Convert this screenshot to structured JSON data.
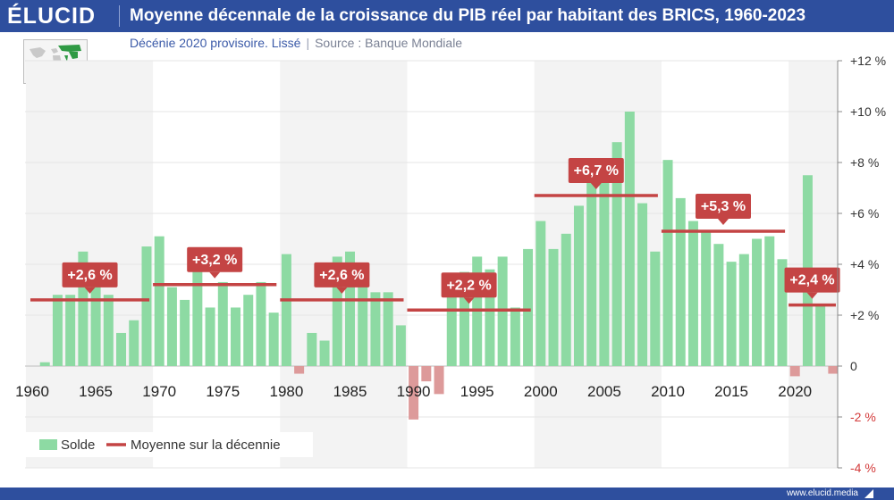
{
  "header": {
    "logo": "ÉLUCID",
    "title": "Moyenne décennale de la croissance du PIB réel par habitant des BRICS, 1960-2023"
  },
  "subtitle": {
    "note": "Décénie 2020 provisoire. Lissé",
    "separator": "|",
    "source": "Source : Banque Mondiale"
  },
  "map_icon": "world-map-brics-icon",
  "footer": {
    "site": "www.elucid.media"
  },
  "colors": {
    "header_bg": "#2e4f9e",
    "bar_positive": "#8ddaa3",
    "bar_negative": "#dd9a9a",
    "avg_line": "#c44444",
    "avg_label_bg": "#c44444",
    "neg_tick": "#d33a3a",
    "band": "#f3f3f3"
  },
  "chart_data": {
    "type": "bar",
    "title": "Moyenne décennale de la croissance du PIB réel par habitant des BRICS, 1960-2023",
    "x_range": [
      1960,
      2023
    ],
    "ylim": [
      -4,
      12
    ],
    "y_ticks": [
      12,
      10,
      8,
      6,
      4,
      2,
      0,
      -2,
      -4
    ],
    "y_tick_labels": [
      "+12 %",
      "+10 %",
      "+8 %",
      "+6 %",
      "+4 %",
      "+2 %",
      "0",
      "-2 %",
      "-4 %"
    ],
    "x_ticks": [
      1960,
      1965,
      1970,
      1975,
      1980,
      1985,
      1990,
      1995,
      2000,
      2005,
      2010,
      2015,
      2020
    ],
    "x_tick_labels": [
      "1960",
      "1965",
      "1970",
      "1975",
      "1980",
      "1985",
      "1990",
      "1995",
      "2000",
      "2005",
      "2010",
      "2015",
      "2020"
    ],
    "grid": true,
    "legend_position": "bottom-left",
    "series": [
      {
        "name": "Solde",
        "type": "bar",
        "years": [
          1960,
          1961,
          1962,
          1963,
          1964,
          1965,
          1966,
          1967,
          1968,
          1969,
          1970,
          1971,
          1972,
          1973,
          1974,
          1975,
          1976,
          1977,
          1978,
          1979,
          1980,
          1981,
          1982,
          1983,
          1984,
          1985,
          1986,
          1987,
          1988,
          1989,
          1990,
          1991,
          1992,
          1993,
          1994,
          1995,
          1996,
          1997,
          1998,
          1999,
          2000,
          2001,
          2002,
          2003,
          2004,
          2005,
          2006,
          2007,
          2008,
          2009,
          2010,
          2011,
          2012,
          2013,
          2014,
          2015,
          2016,
          2017,
          2018,
          2019,
          2020,
          2021,
          2022,
          2023
        ],
        "values": [
          0.0,
          0.15,
          2.8,
          2.8,
          4.5,
          3.4,
          2.8,
          1.3,
          1.8,
          4.7,
          5.1,
          3.1,
          2.6,
          4.5,
          2.3,
          3.3,
          2.3,
          2.8,
          3.3,
          2.1,
          4.4,
          -0.3,
          1.3,
          1.0,
          4.3,
          4.5,
          3.4,
          2.9,
          2.9,
          1.6,
          -2.1,
          -0.6,
          -1.1,
          2.9,
          3.7,
          4.3,
          3.8,
          4.3,
          2.3,
          4.6,
          5.7,
          4.6,
          5.2,
          6.3,
          7.4,
          7.7,
          8.8,
          10.0,
          6.4,
          4.5,
          8.1,
          6.6,
          5.7,
          5.3,
          4.8,
          4.1,
          4.4,
          5.0,
          5.1,
          4.2,
          -0.4,
          7.5,
          2.4,
          -0.3
        ]
      },
      {
        "name": "Moyenne sur la décennie",
        "type": "line",
        "decades": [
          {
            "start": 1960,
            "end": 1969,
            "value": 2.6,
            "label": "+2,6 %"
          },
          {
            "start": 1970,
            "end": 1979,
            "value": 3.2,
            "label": "+3,2 %"
          },
          {
            "start": 1980,
            "end": 1989,
            "value": 2.6,
            "label": "+2,6 %"
          },
          {
            "start": 1990,
            "end": 1999,
            "value": 2.2,
            "label": "+2,2 %"
          },
          {
            "start": 2000,
            "end": 2009,
            "value": 6.7,
            "label": "+6,7 %"
          },
          {
            "start": 2010,
            "end": 2019,
            "value": 5.3,
            "label": "+5,3 %"
          },
          {
            "start": 2020,
            "end": 2023,
            "value": 2.4,
            "label": "+2,4 %"
          }
        ]
      }
    ]
  }
}
